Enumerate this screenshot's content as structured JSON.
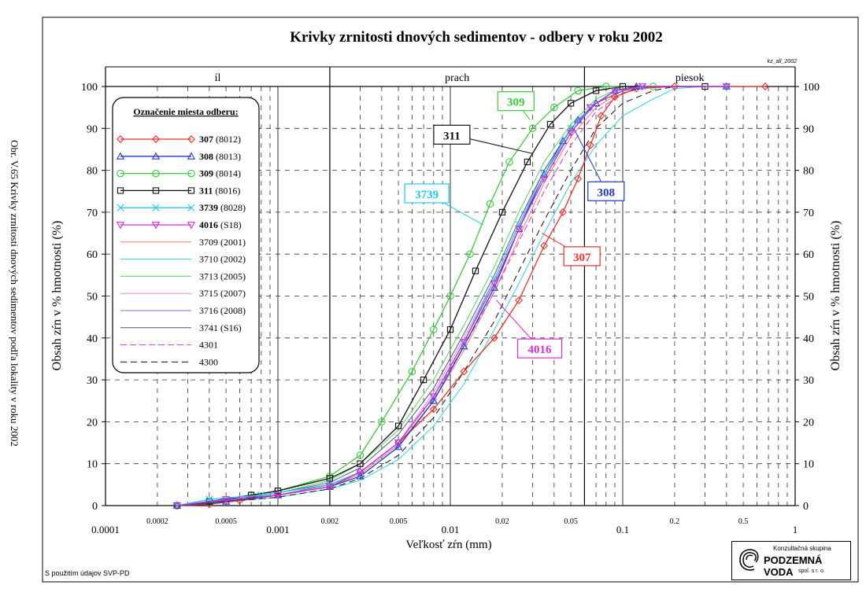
{
  "side_caption": "Obr. V.65 Krivky zrnitosti dnových sedimentov podľa lokality v roku 2002",
  "footnote": "S použitím údajov SVP-PD",
  "logo": {
    "top": "Konzultačná skupina",
    "main": "PODZEMNÁ VODA",
    "sub": "spol. s r. o."
  },
  "chart_data": {
    "type": "line",
    "title": "Krivky zrnitosti dnových sedimentov - odbery v roku 2002",
    "corner_tag": "kz_all_2002",
    "xlabel": "Veľkosť zŕn (mm)",
    "ylabel": "Obsah zŕn v % hmotnosti (%)",
    "x_scale": "log",
    "xlim": [
      0.0001,
      1
    ],
    "ylim": [
      0,
      100
    ],
    "x_ticks": [
      {
        "v": 0.0001,
        "label": "0.0001",
        "major": true
      },
      {
        "v": 0.0002,
        "label": "0.0002",
        "major": false
      },
      {
        "v": 0.0005,
        "label": "0.0005",
        "major": false
      },
      {
        "v": 0.001,
        "label": "0.001",
        "major": true
      },
      {
        "v": 0.002,
        "label": "0.002",
        "major": false
      },
      {
        "v": 0.005,
        "label": "0.005",
        "major": false
      },
      {
        "v": 0.01,
        "label": "0.01",
        "major": true
      },
      {
        "v": 0.02,
        "label": "0.02",
        "major": false
      },
      {
        "v": 0.05,
        "label": "0.05",
        "major": false
      },
      {
        "v": 0.1,
        "label": "0.1",
        "major": true
      },
      {
        "v": 0.2,
        "label": "0.2",
        "major": false
      },
      {
        "v": 0.5,
        "label": "0.5",
        "major": false
      },
      {
        "v": 1,
        "label": "1",
        "major": true
      }
    ],
    "y_ticks": [
      0,
      10,
      20,
      30,
      40,
      50,
      60,
      70,
      80,
      90,
      100
    ],
    "zones": [
      {
        "label": "íl",
        "from": 0.0001,
        "to": 0.002
      },
      {
        "label": "prach",
        "from": 0.002,
        "to": 0.06
      },
      {
        "label": "piesok",
        "from": 0.06,
        "to": 1
      }
    ],
    "legend_title": "Označenie miesta odberu:",
    "legend_position": "upper-left",
    "series": [
      {
        "id": "307",
        "name": "307",
        "code": "(8012)",
        "color": "#e8312b",
        "marker": "diamond",
        "dash": "",
        "bold": true,
        "points": [
          [
            0.00026,
            0
          ],
          [
            0.0004,
            0.3
          ],
          [
            0.0006,
            1.2
          ],
          [
            0.001,
            2.5
          ],
          [
            0.002,
            4.5
          ],
          [
            0.003,
            8
          ],
          [
            0.005,
            15
          ],
          [
            0.008,
            23
          ],
          [
            0.012,
            32
          ],
          [
            0.018,
            40
          ],
          [
            0.025,
            49
          ],
          [
            0.035,
            62
          ],
          [
            0.045,
            70
          ],
          [
            0.055,
            78
          ],
          [
            0.065,
            86
          ],
          [
            0.075,
            93
          ],
          [
            0.09,
            97.5
          ],
          [
            0.12,
            99.5
          ],
          [
            0.2,
            100
          ],
          [
            0.67,
            100
          ]
        ]
      },
      {
        "id": "308",
        "name": "308",
        "code": "(8013)",
        "color": "#1f35c9",
        "marker": "triangle",
        "dash": "",
        "bold": true,
        "points": [
          [
            0.00026,
            0
          ],
          [
            0.0005,
            1
          ],
          [
            0.001,
            2.5
          ],
          [
            0.002,
            4.5
          ],
          [
            0.003,
            7
          ],
          [
            0.005,
            14
          ],
          [
            0.008,
            25
          ],
          [
            0.012,
            38
          ],
          [
            0.018,
            52
          ],
          [
            0.025,
            66
          ],
          [
            0.035,
            79
          ],
          [
            0.045,
            87
          ],
          [
            0.055,
            92
          ],
          [
            0.07,
            96
          ],
          [
            0.09,
            99
          ],
          [
            0.12,
            100
          ],
          [
            0.4,
            100
          ]
        ]
      },
      {
        "id": "309",
        "name": "309",
        "code": "(8014)",
        "color": "#3ec83e",
        "marker": "circle",
        "dash": "",
        "bold": true,
        "points": [
          [
            0.00026,
            0
          ],
          [
            0.0004,
            1
          ],
          [
            0.0007,
            2.5
          ],
          [
            0.001,
            3.5
          ],
          [
            0.002,
            7
          ],
          [
            0.003,
            12
          ],
          [
            0.004,
            20
          ],
          [
            0.006,
            32
          ],
          [
            0.008,
            42
          ],
          [
            0.01,
            50
          ],
          [
            0.013,
            60
          ],
          [
            0.017,
            72
          ],
          [
            0.022,
            82
          ],
          [
            0.03,
            90
          ],
          [
            0.04,
            95
          ],
          [
            0.055,
            99
          ],
          [
            0.08,
            100
          ],
          [
            0.15,
            100
          ]
        ]
      },
      {
        "id": "311",
        "name": "311",
        "code": "(8016)",
        "color": "#111111",
        "marker": "square",
        "dash": "",
        "bold": true,
        "points": [
          [
            0.00026,
            0
          ],
          [
            0.0004,
            1
          ],
          [
            0.0007,
            2.5
          ],
          [
            0.001,
            3.5
          ],
          [
            0.002,
            6.5
          ],
          [
            0.003,
            10
          ],
          [
            0.005,
            19
          ],
          [
            0.007,
            30
          ],
          [
            0.01,
            42
          ],
          [
            0.014,
            56
          ],
          [
            0.02,
            70
          ],
          [
            0.028,
            82
          ],
          [
            0.038,
            91
          ],
          [
            0.05,
            96
          ],
          [
            0.07,
            99
          ],
          [
            0.1,
            100
          ],
          [
            0.3,
            100
          ]
        ]
      },
      {
        "id": "3739",
        "name": "3739",
        "code": "(8028)",
        "color": "#1ec8e8",
        "marker": "x",
        "dash": "",
        "bold": true,
        "points": [
          [
            0.00026,
            0
          ],
          [
            0.0004,
            1.5
          ],
          [
            0.0008,
            2.5
          ],
          [
            0.002,
            5
          ],
          [
            0.003,
            8
          ],
          [
            0.005,
            15
          ],
          [
            0.008,
            26
          ],
          [
            0.012,
            39
          ],
          [
            0.018,
            54
          ],
          [
            0.025,
            67
          ],
          [
            0.035,
            79
          ],
          [
            0.05,
            90
          ],
          [
            0.065,
            95
          ],
          [
            0.09,
            99
          ],
          [
            0.13,
            100
          ],
          [
            0.4,
            100
          ]
        ]
      },
      {
        "id": "4016",
        "name": "4016",
        "code": "(S18)",
        "color": "#d42ed4",
        "marker": "triangle-down",
        "dash": "",
        "bold": true,
        "points": [
          [
            0.00026,
            0
          ],
          [
            0.0005,
            1.5
          ],
          [
            0.001,
            2.5
          ],
          [
            0.002,
            4.5
          ],
          [
            0.003,
            8
          ],
          [
            0.005,
            15
          ],
          [
            0.008,
            26
          ],
          [
            0.012,
            39
          ],
          [
            0.018,
            53
          ],
          [
            0.025,
            66
          ],
          [
            0.035,
            78
          ],
          [
            0.05,
            89
          ],
          [
            0.065,
            95
          ],
          [
            0.09,
            99
          ],
          [
            0.13,
            100
          ],
          [
            0.4,
            100
          ]
        ]
      },
      {
        "id": "3709",
        "name": "3709 (2001)",
        "code": "",
        "color": "#f07878",
        "marker": "none",
        "dash": "",
        "bold": false,
        "points": [
          [
            0.0003,
            0
          ],
          [
            0.001,
            2.5
          ],
          [
            0.002,
            4.5
          ],
          [
            0.003,
            7.5
          ],
          [
            0.005,
            14.5
          ],
          [
            0.008,
            25
          ],
          [
            0.012,
            37
          ],
          [
            0.018,
            51
          ],
          [
            0.025,
            64
          ],
          [
            0.035,
            77
          ],
          [
            0.05,
            88
          ],
          [
            0.07,
            95
          ],
          [
            0.1,
            99
          ],
          [
            0.15,
            100
          ]
        ]
      },
      {
        "id": "3710",
        "name": "3710 (2002)",
        "code": "",
        "color": "#33cfe6",
        "marker": "none",
        "dash": "",
        "bold": false,
        "points": [
          [
            0.0003,
            0
          ],
          [
            0.001,
            2
          ],
          [
            0.002,
            4
          ],
          [
            0.003,
            6
          ],
          [
            0.005,
            11
          ],
          [
            0.008,
            19
          ],
          [
            0.012,
            29
          ],
          [
            0.018,
            42
          ],
          [
            0.025,
            53
          ],
          [
            0.035,
            65
          ],
          [
            0.05,
            77
          ],
          [
            0.07,
            86
          ],
          [
            0.1,
            93
          ],
          [
            0.15,
            97
          ],
          [
            0.2,
            99.5
          ],
          [
            0.3,
            100
          ]
        ]
      },
      {
        "id": "3713",
        "name": "3713 (2005)",
        "code": "",
        "color": "#5ad25a",
        "marker": "none",
        "dash": "",
        "bold": false,
        "points": [
          [
            0.0003,
            0
          ],
          [
            0.001,
            3
          ],
          [
            0.002,
            6
          ],
          [
            0.003,
            10
          ],
          [
            0.005,
            18
          ],
          [
            0.008,
            30
          ],
          [
            0.012,
            43
          ],
          [
            0.018,
            57
          ],
          [
            0.025,
            70
          ],
          [
            0.035,
            82
          ],
          [
            0.05,
            91
          ],
          [
            0.07,
            97
          ],
          [
            0.1,
            100
          ],
          [
            0.15,
            100
          ]
        ]
      },
      {
        "id": "3715",
        "name": "3715 (2007)",
        "code": "",
        "color": "#e08ae0",
        "marker": "none",
        "dash": "",
        "bold": false,
        "points": [
          [
            0.0003,
            0
          ],
          [
            0.001,
            2.5
          ],
          [
            0.002,
            5
          ],
          [
            0.003,
            8
          ],
          [
            0.005,
            15
          ],
          [
            0.008,
            27
          ],
          [
            0.012,
            40
          ],
          [
            0.018,
            54
          ],
          [
            0.025,
            67
          ],
          [
            0.035,
            80
          ],
          [
            0.05,
            90
          ],
          [
            0.07,
            96
          ],
          [
            0.1,
            99
          ],
          [
            0.15,
            100
          ]
        ]
      },
      {
        "id": "3716",
        "name": "3716 (2008)",
        "code": "",
        "color": "#6b7ad8",
        "marker": "none",
        "dash": "",
        "bold": false,
        "points": [
          [
            0.0003,
            0
          ],
          [
            0.001,
            2.5
          ],
          [
            0.002,
            5
          ],
          [
            0.003,
            8
          ],
          [
            0.005,
            15
          ],
          [
            0.008,
            26
          ],
          [
            0.012,
            39
          ],
          [
            0.018,
            53
          ],
          [
            0.025,
            66
          ],
          [
            0.035,
            79
          ],
          [
            0.05,
            89
          ],
          [
            0.07,
            96
          ],
          [
            0.1,
            99
          ],
          [
            0.15,
            100
          ]
        ]
      },
      {
        "id": "3741",
        "name": "3741 (S16)",
        "code": "",
        "color": "#555577",
        "marker": "none",
        "dash": "",
        "bold": false,
        "points": [
          [
            0.0003,
            0
          ],
          [
            0.001,
            3
          ],
          [
            0.002,
            5.5
          ],
          [
            0.003,
            9
          ],
          [
            0.005,
            17
          ],
          [
            0.008,
            28
          ],
          [
            0.012,
            41
          ],
          [
            0.018,
            55
          ],
          [
            0.025,
            68
          ],
          [
            0.035,
            80
          ],
          [
            0.05,
            90
          ],
          [
            0.07,
            96
          ],
          [
            0.1,
            99
          ],
          [
            0.15,
            100
          ]
        ]
      },
      {
        "id": "4301",
        "name": "4301",
        "code": "",
        "color": "#e033d6",
        "marker": "none",
        "dash": "8 4",
        "bold": false,
        "points": [
          [
            0.0003,
            0
          ],
          [
            0.001,
            2.5
          ],
          [
            0.002,
            5
          ],
          [
            0.003,
            8
          ],
          [
            0.005,
            15
          ],
          [
            0.008,
            26
          ],
          [
            0.012,
            38
          ],
          [
            0.018,
            51
          ],
          [
            0.025,
            63
          ],
          [
            0.035,
            75
          ],
          [
            0.05,
            86
          ],
          [
            0.07,
            94
          ],
          [
            0.1,
            98.5
          ],
          [
            0.15,
            100
          ]
        ]
      },
      {
        "id": "4300",
        "name": "4300",
        "code": "",
        "color": "#111111",
        "marker": "none",
        "dash": "8 5",
        "bold": false,
        "points": [
          [
            0.0003,
            0
          ],
          [
            0.001,
            2
          ],
          [
            0.002,
            4
          ],
          [
            0.003,
            6.5
          ],
          [
            0.005,
            12
          ],
          [
            0.008,
            21
          ],
          [
            0.012,
            32
          ],
          [
            0.018,
            44
          ],
          [
            0.025,
            56
          ],
          [
            0.035,
            68
          ],
          [
            0.05,
            80
          ],
          [
            0.07,
            90
          ],
          [
            0.1,
            96
          ],
          [
            0.15,
            99
          ],
          [
            0.2,
            100
          ]
        ]
      }
    ],
    "callouts": [
      {
        "id": "309",
        "label": "309",
        "color": "#3ec83e",
        "box_color": "#3ec83e",
        "text_color": "#3ec83e",
        "at": [
          0.024,
          96.5
        ],
        "to": [
          0.029,
          92
        ]
      },
      {
        "id": "311",
        "label": "311",
        "color": "#111111",
        "box_color": "#111111",
        "text_color": "#111111",
        "at": [
          0.0102,
          88.5
        ],
        "to": [
          0.03,
          84
        ]
      },
      {
        "id": "3739",
        "label": "3739",
        "color": "#1ec8e8",
        "box_color": "#1ec8e8",
        "text_color": "#1ec8e8",
        "at": [
          0.0073,
          74.5
        ],
        "to": [
          0.0155,
          67
        ]
      },
      {
        "id": "308",
        "label": "308",
        "color": "#1f35c9",
        "box_color": "#1f35c9",
        "text_color": "#1f35c9",
        "at": [
          0.08,
          75
        ],
        "to": [
          0.052,
          90
        ]
      },
      {
        "id": "307",
        "label": "307",
        "color": "#e8312b",
        "box_color": "#e8312b",
        "text_color": "#e8312b",
        "at": [
          0.058,
          59.5
        ],
        "to": [
          0.034,
          65
        ]
      },
      {
        "id": "4016",
        "label": "4016",
        "color": "#d42ed4",
        "box_color": "#d42ed4",
        "text_color": "#d42ed4",
        "at": [
          0.033,
          37.5
        ],
        "to": [
          0.0185,
          49
        ]
      }
    ]
  }
}
